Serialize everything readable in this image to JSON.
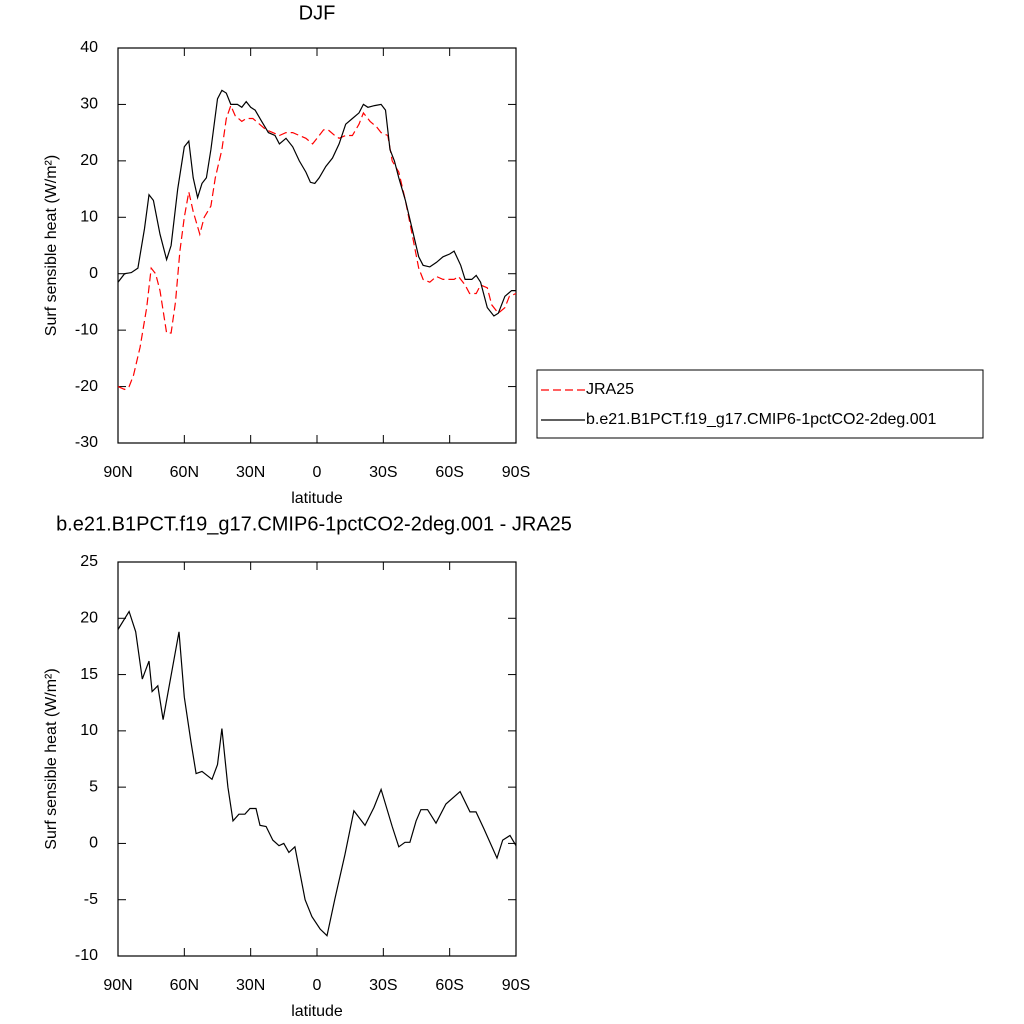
{
  "chart_data": [
    {
      "type": "line",
      "title": "DJF",
      "xlabel": "latitude",
      "ylabel": "Surf sensible heat (W/m²)",
      "xlim": [
        90,
        -90
      ],
      "ylim": [
        -30,
        40
      ],
      "xticks": [
        {
          "value": 90,
          "label": "90N"
        },
        {
          "value": 60,
          "label": "60N"
        },
        {
          "value": 30,
          "label": "30N"
        },
        0,
        {
          "value": -30,
          "label": "30S"
        },
        {
          "value": -60,
          "label": "60S"
        },
        {
          "value": -90,
          "label": "90S"
        }
      ],
      "yticks": [
        -30,
        -20,
        -10,
        0,
        10,
        20,
        30,
        40
      ],
      "legend": "right",
      "series": [
        {
          "name": "JRA25",
          "color": "#ff0000",
          "line_style": "dashed",
          "x": [
            90,
            87,
            85,
            83,
            80,
            77,
            75,
            73,
            71,
            68,
            66,
            64,
            62,
            60,
            58,
            56,
            53,
            51,
            48,
            46,
            43,
            41,
            39,
            37,
            34,
            32,
            29,
            26,
            23,
            20,
            17,
            14,
            11,
            8,
            5,
            2,
            0,
            -3,
            -5,
            -8,
            -10,
            -13,
            -16,
            -19,
            -21,
            -24,
            -27,
            -29,
            -32,
            -34,
            -37,
            -40,
            -43,
            -46,
            -48,
            -51,
            -54,
            -57,
            -60,
            -62,
            -64,
            -67,
            -69,
            -72,
            -74,
            -77,
            -79,
            -82,
            -85,
            -87,
            -90
          ],
          "values": [
            -20,
            -20.5,
            -20,
            -18,
            -13,
            -6,
            1,
            0,
            -3,
            -10.5,
            -10.5,
            -5,
            4,
            10,
            14.5,
            11,
            7,
            10,
            12,
            17,
            22,
            27.5,
            29.8,
            28,
            27,
            27.5,
            27.5,
            26.5,
            25.5,
            25,
            24.5,
            25,
            25,
            24.5,
            24,
            23,
            24,
            25.5,
            25.5,
            24.5,
            24,
            24.5,
            24.5,
            26.5,
            28.5,
            27,
            26,
            25,
            24.5,
            20,
            18,
            13,
            7,
            1,
            -1,
            -1.5,
            -0.5,
            -1,
            -1,
            -1,
            -0.5,
            -2,
            -3.5,
            -3.5,
            -2,
            -2.5,
            -5.5,
            -7,
            -6,
            -4,
            -3.5
          ]
        },
        {
          "name": "b.e21.B1PCT.f19_g17.CMIP6-1pctCO2-2deg.001",
          "color": "#000000",
          "line_style": "solid",
          "x": [
            90,
            87,
            84,
            81,
            78,
            76,
            74,
            71,
            68,
            66,
            63,
            60,
            58,
            56,
            54,
            52,
            50,
            48,
            45,
            43,
            41,
            39,
            36,
            34,
            32,
            30,
            28,
            25,
            22,
            19,
            17,
            14,
            11,
            8,
            5,
            3,
            1,
            -1,
            -4,
            -7,
            -10,
            -13,
            -16,
            -19,
            -21,
            -23,
            -26,
            -29,
            -31,
            -33,
            -35,
            -37,
            -40,
            -43,
            -46,
            -48,
            -51,
            -54,
            -57,
            -60,
            -62,
            -65,
            -67,
            -70,
            -72,
            -74,
            -77,
            -80,
            -82,
            -85,
            -88,
            -90
          ],
          "values": [
            -1.5,
            0,
            0.2,
            1,
            8,
            14,
            13,
            7,
            2.5,
            5,
            15,
            22.5,
            23.5,
            17,
            13.5,
            16,
            17,
            22,
            31,
            32.5,
            32,
            30,
            30,
            29.5,
            30.5,
            29.5,
            29,
            27,
            25,
            24.5,
            23,
            24,
            22.5,
            20,
            18,
            16.2,
            16,
            17,
            19,
            20.5,
            23,
            26.5,
            27.5,
            28.5,
            30,
            29.5,
            29.8,
            30,
            29,
            22,
            20,
            17,
            13,
            8,
            3,
            1.5,
            1.2,
            2,
            3,
            3.5,
            4,
            1.5,
            -1,
            -1,
            -0.3,
            -1.5,
            -6,
            -7.5,
            -7,
            -4,
            -3,
            -3
          ]
        }
      ]
    },
    {
      "type": "line",
      "title": "b.e21.B1PCT.f19_g17.CMIP6-1pctCO2-2deg.001 - JRA25",
      "xlabel": "latitude",
      "ylabel": "Surf sensible heat (W/m²)",
      "xlim": [
        90,
        -90
      ],
      "ylim": [
        -10,
        25
      ],
      "xticks": [
        {
          "value": 90,
          "label": "90N"
        },
        {
          "value": 60,
          "label": "60N"
        },
        {
          "value": 30,
          "label": "30N"
        },
        0,
        {
          "value": -30,
          "label": "30S"
        },
        {
          "value": -60,
          "label": "60S"
        },
        {
          "value": -90,
          "label": "90S"
        }
      ],
      "yticks": [
        -10,
        -5,
        0,
        5,
        10,
        15,
        20,
        25
      ],
      "series": [
        {
          "color": "#000000",
          "line_style": "solid",
          "x": [
            90,
            85,
            82,
            79,
            76,
            74.6,
            72,
            69.6,
            62.4,
            60,
            57,
            54.7,
            52,
            47.5,
            45,
            43,
            40.3,
            38,
            35.3,
            32.6,
            30.3,
            27.6,
            25.8,
            23,
            20,
            17.2,
            15,
            12.7,
            10,
            5.4,
            2.3,
            -1.4,
            -4.5,
            -8,
            -12.6,
            -16.7,
            -21.7,
            -25.8,
            -29,
            -34,
            -37,
            -39.8,
            -42,
            -44.8,
            -47,
            -50,
            -53.8,
            -58.3,
            -64.7,
            -69.2,
            -71.9,
            -75.5,
            -81.4,
            -84,
            -87.3,
            -90
          ],
          "values": [
            19,
            20.6,
            18.8,
            14.6,
            16.2,
            13.5,
            14,
            11,
            18.8,
            13,
            9,
            6.2,
            6.4,
            5.7,
            7,
            10.2,
            5,
            2,
            2.6,
            2.6,
            3.1,
            3.1,
            1.6,
            1.5,
            0.3,
            -0.2,
            0,
            -0.8,
            -0.3,
            -5,
            -6.5,
            -7.6,
            -8.2,
            -5,
            -1,
            2.9,
            1.6,
            3.2,
            4.8,
            1.5,
            -0.3,
            0.1,
            0.1,
            2,
            3,
            3,
            1.8,
            3.5,
            4.6,
            2.8,
            2.8,
            1.3,
            -1.3,
            0.3,
            0.7,
            -0.2
          ]
        }
      ]
    }
  ]
}
